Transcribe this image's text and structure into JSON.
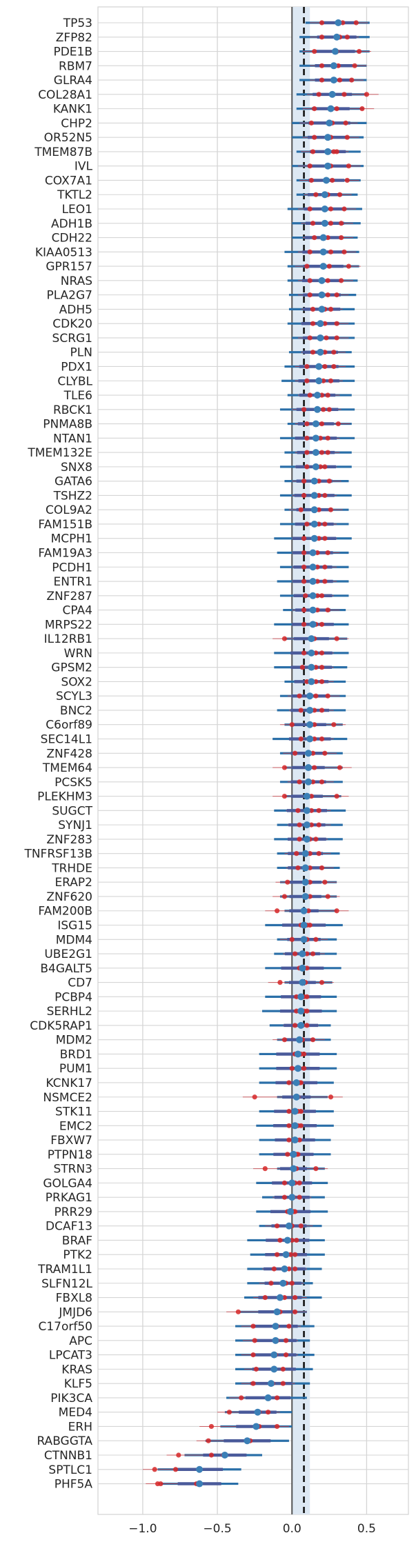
{
  "chart_data": {
    "type": "forest",
    "title": "",
    "xlabel": "",
    "ylabel": "",
    "xlim": [
      -1.3,
      0.78
    ],
    "xticks": [
      -1.0,
      -0.5,
      0.0,
      0.5
    ],
    "xtick_labels": [
      "−1.0",
      "−0.5",
      "0.0",
      "0.5"
    ],
    "zero_line": 0.0,
    "reference_line": 0.08,
    "reference_band": [
      0.0,
      0.12
    ],
    "grid": true,
    "colors": {
      "interval": "#2a6fa8",
      "estimate": "#3b7fb6",
      "replicate": "#d62728",
      "replicate_line": "#c8474f",
      "band": "#dde8f3",
      "grid": "#d5d5d5",
      "zero_line": "#555555",
      "reference_line": "#111111"
    },
    "genes": [
      {
        "name": "TP53",
        "est": 0.31,
        "lo": 0.09,
        "hi": 0.52,
        "reps": [
          0.2,
          0.43,
          0.34
        ]
      },
      {
        "name": "ZFP82",
        "est": 0.3,
        "lo": 0.05,
        "hi": 0.52,
        "reps": [
          0.2,
          0.37,
          0.32
        ]
      },
      {
        "name": "PDE1B",
        "est": 0.29,
        "lo": 0.05,
        "hi": 0.52,
        "reps": [
          0.15,
          0.45,
          0.3
        ]
      },
      {
        "name": "RBM7",
        "est": 0.28,
        "lo": 0.05,
        "hi": 0.5,
        "reps": [
          0.2,
          0.42,
          0.31
        ]
      },
      {
        "name": "GLRA4",
        "est": 0.28,
        "lo": 0.05,
        "hi": 0.5,
        "reps": [
          0.2,
          0.4,
          0.32
        ]
      },
      {
        "name": "COL28A1",
        "est": 0.27,
        "lo": 0.03,
        "hi": 0.5,
        "reps": [
          0.18,
          0.5,
          0.35
        ]
      },
      {
        "name": "KANK1",
        "est": 0.26,
        "lo": 0.03,
        "hi": 0.48,
        "reps": [
          0.15,
          0.47,
          0.3
        ]
      },
      {
        "name": "CHP2",
        "est": 0.25,
        "lo": 0.0,
        "hi": 0.5,
        "reps": [
          0.13,
          0.36,
          0.27
        ]
      },
      {
        "name": "OR52N5",
        "est": 0.24,
        "lo": 0.0,
        "hi": 0.48,
        "reps": [
          0.15,
          0.37,
          0.26
        ]
      },
      {
        "name": "TMEM87B",
        "est": 0.24,
        "lo": 0.03,
        "hi": 0.46,
        "reps": [
          0.14,
          0.3,
          0.28
        ]
      },
      {
        "name": "IVL",
        "est": 0.24,
        "lo": 0.0,
        "hi": 0.48,
        "reps": [
          0.12,
          0.38,
          0.26
        ]
      },
      {
        "name": "COX7A1",
        "est": 0.23,
        "lo": 0.03,
        "hi": 0.46,
        "reps": [
          0.13,
          0.37,
          0.27
        ]
      },
      {
        "name": "TKTL2",
        "est": 0.22,
        "lo": 0.03,
        "hi": 0.44,
        "reps": [
          0.16,
          0.32,
          0.24
        ]
      },
      {
        "name": "LEO1",
        "est": 0.22,
        "lo": -0.03,
        "hi": 0.47,
        "reps": [
          0.12,
          0.35,
          0.26
        ]
      },
      {
        "name": "ADH1B",
        "est": 0.22,
        "lo": 0.0,
        "hi": 0.46,
        "reps": [
          0.14,
          0.33,
          0.26
        ]
      },
      {
        "name": "CDH22",
        "est": 0.21,
        "lo": 0.0,
        "hi": 0.44,
        "reps": [
          0.15,
          0.33,
          0.24
        ]
      },
      {
        "name": "KIAA0513",
        "est": 0.21,
        "lo": -0.05,
        "hi": 0.45,
        "reps": [
          0.12,
          0.35,
          0.26
        ]
      },
      {
        "name": "GPR157",
        "est": 0.21,
        "lo": -0.03,
        "hi": 0.45,
        "reps": [
          0.1,
          0.38,
          0.25
        ]
      },
      {
        "name": "NRAS",
        "est": 0.2,
        "lo": -0.03,
        "hi": 0.44,
        "reps": [
          0.12,
          0.33,
          0.24
        ]
      },
      {
        "name": "PLA2G7",
        "est": 0.2,
        "lo": -0.02,
        "hi": 0.43,
        "reps": [
          0.12,
          0.3,
          0.24
        ]
      },
      {
        "name": "ADH5",
        "est": 0.2,
        "lo": -0.02,
        "hi": 0.42,
        "reps": [
          0.14,
          0.26,
          0.22
        ]
      },
      {
        "name": "CDK20",
        "est": 0.19,
        "lo": -0.03,
        "hi": 0.42,
        "reps": [
          0.14,
          0.3,
          0.22
        ]
      },
      {
        "name": "SCRG1",
        "est": 0.19,
        "lo": 0.0,
        "hi": 0.42,
        "reps": [
          0.12,
          0.3,
          0.23
        ]
      },
      {
        "name": "PLN",
        "est": 0.19,
        "lo": -0.02,
        "hi": 0.4,
        "reps": [
          0.14,
          0.28,
          0.22
        ]
      },
      {
        "name": "PDX1",
        "est": 0.18,
        "lo": -0.05,
        "hi": 0.42,
        "reps": [
          0.1,
          0.28,
          0.22
        ]
      },
      {
        "name": "CLYBL",
        "est": 0.18,
        "lo": -0.07,
        "hi": 0.42,
        "reps": [
          0.1,
          0.26,
          0.21
        ]
      },
      {
        "name": "TLE6",
        "est": 0.17,
        "lo": -0.03,
        "hi": 0.4,
        "reps": [
          0.12,
          0.24,
          0.2
        ]
      },
      {
        "name": "RBCK1",
        "est": 0.17,
        "lo": -0.08,
        "hi": 0.42,
        "reps": [
          0.08,
          0.25,
          0.21
        ]
      },
      {
        "name": "PNMA8B",
        "est": 0.16,
        "lo": -0.03,
        "hi": 0.4,
        "reps": [
          0.1,
          0.31,
          0.2
        ]
      },
      {
        "name": "NTAN1",
        "est": 0.16,
        "lo": -0.08,
        "hi": 0.42,
        "reps": [
          0.1,
          0.24,
          0.19
        ]
      },
      {
        "name": "TMEM132E",
        "est": 0.16,
        "lo": -0.05,
        "hi": 0.4,
        "reps": [
          0.1,
          0.24,
          0.2
        ]
      },
      {
        "name": "SNX8",
        "est": 0.16,
        "lo": -0.08,
        "hi": 0.4,
        "reps": [
          0.1,
          0.22,
          0.19
        ]
      },
      {
        "name": "GATA6",
        "est": 0.15,
        "lo": -0.05,
        "hi": 0.38,
        "reps": [
          0.08,
          0.25,
          0.18
        ]
      },
      {
        "name": "TSHZ2",
        "est": 0.15,
        "lo": -0.08,
        "hi": 0.4,
        "reps": [
          0.08,
          0.22,
          0.18
        ]
      },
      {
        "name": "COL9A2",
        "est": 0.15,
        "lo": -0.05,
        "hi": 0.38,
        "reps": [
          0.06,
          0.26,
          0.18
        ]
      },
      {
        "name": "FAM151B",
        "est": 0.15,
        "lo": -0.08,
        "hi": 0.38,
        "reps": [
          0.1,
          0.22,
          0.18
        ]
      },
      {
        "name": "MCPH1",
        "est": 0.15,
        "lo": -0.12,
        "hi": 0.4,
        "reps": [
          0.08,
          0.22,
          0.18
        ]
      },
      {
        "name": "FAM19A3",
        "est": 0.14,
        "lo": -0.1,
        "hi": 0.38,
        "reps": [
          0.08,
          0.24,
          0.17
        ]
      },
      {
        "name": "PCDH1",
        "est": 0.14,
        "lo": -0.08,
        "hi": 0.38,
        "reps": [
          0.08,
          0.22,
          0.17
        ]
      },
      {
        "name": "ENTR1",
        "est": 0.14,
        "lo": -0.1,
        "hi": 0.38,
        "reps": [
          0.08,
          0.22,
          0.17
        ]
      },
      {
        "name": "ZNF287",
        "est": 0.14,
        "lo": -0.08,
        "hi": 0.38,
        "reps": [
          0.09,
          0.2,
          0.17
        ]
      },
      {
        "name": "CPA4",
        "est": 0.14,
        "lo": -0.06,
        "hi": 0.36,
        "reps": [
          0.08,
          0.24,
          0.17
        ]
      },
      {
        "name": "MRPS22",
        "est": 0.14,
        "lo": -0.12,
        "hi": 0.38,
        "reps": [
          0.08,
          0.2,
          0.16
        ]
      },
      {
        "name": "IL12RB1",
        "est": 0.13,
        "lo": -0.05,
        "hi": 0.37,
        "reps": [
          -0.05,
          0.3,
          0.15
        ]
      },
      {
        "name": "WRN",
        "est": 0.13,
        "lo": -0.12,
        "hi": 0.38,
        "reps": [
          0.08,
          0.2,
          0.16
        ]
      },
      {
        "name": "GPSM2",
        "est": 0.13,
        "lo": -0.12,
        "hi": 0.37,
        "reps": [
          0.07,
          0.2,
          0.16
        ]
      },
      {
        "name": "SOX2",
        "est": 0.13,
        "lo": -0.05,
        "hi": 0.36,
        "reps": [
          0.1,
          0.2,
          0.16
        ]
      },
      {
        "name": "SCYL3",
        "est": 0.12,
        "lo": -0.08,
        "hi": 0.36,
        "reps": [
          0.05,
          0.24,
          0.16
        ]
      },
      {
        "name": "BNC2",
        "est": 0.12,
        "lo": -0.1,
        "hi": 0.36,
        "reps": [
          0.06,
          0.2,
          0.15
        ]
      },
      {
        "name": "C6orf89",
        "est": 0.12,
        "lo": -0.05,
        "hi": 0.34,
        "reps": [
          0.0,
          0.28,
          0.15
        ]
      },
      {
        "name": "SEC14L1",
        "est": 0.12,
        "lo": -0.13,
        "hi": 0.37,
        "reps": [
          0.06,
          0.2,
          0.15
        ]
      },
      {
        "name": "ZNF428",
        "est": 0.11,
        "lo": -0.08,
        "hi": 0.34,
        "reps": [
          0.02,
          0.22,
          0.14
        ]
      },
      {
        "name": "TMEM64",
        "est": 0.11,
        "lo": -0.05,
        "hi": 0.34,
        "reps": [
          -0.05,
          0.32,
          0.15
        ]
      },
      {
        "name": "PCSK5",
        "est": 0.11,
        "lo": -0.08,
        "hi": 0.34,
        "reps": [
          0.05,
          0.2,
          0.14
        ]
      },
      {
        "name": "PLEKHM3",
        "est": 0.1,
        "lo": -0.05,
        "hi": 0.33,
        "reps": [
          -0.05,
          0.3,
          0.13
        ]
      },
      {
        "name": "SUGCT",
        "est": 0.1,
        "lo": -0.12,
        "hi": 0.36,
        "reps": [
          0.04,
          0.18,
          0.13
        ]
      },
      {
        "name": "SYNJ1",
        "est": 0.1,
        "lo": -0.1,
        "hi": 0.34,
        "reps": [
          0.05,
          0.18,
          0.13
        ]
      },
      {
        "name": "ZNF283",
        "est": 0.1,
        "lo": -0.12,
        "hi": 0.34,
        "reps": [
          0.05,
          0.16,
          0.12
        ]
      },
      {
        "name": "TNFRSF13B",
        "est": 0.09,
        "lo": -0.1,
        "hi": 0.32,
        "reps": [
          0.03,
          0.18,
          0.12
        ]
      },
      {
        "name": "TRHDE",
        "est": 0.09,
        "lo": -0.1,
        "hi": 0.32,
        "reps": [
          0.04,
          0.2,
          0.12
        ]
      },
      {
        "name": "ERAP2",
        "est": 0.09,
        "lo": -0.08,
        "hi": 0.3,
        "reps": [
          -0.03,
          0.22,
          0.12
        ]
      },
      {
        "name": "ZNF620",
        "est": 0.09,
        "lo": -0.08,
        "hi": 0.3,
        "reps": [
          -0.05,
          0.24,
          0.12
        ]
      },
      {
        "name": "FAM200B",
        "est": 0.08,
        "lo": -0.05,
        "hi": 0.3,
        "reps": [
          -0.1,
          0.3,
          0.11
        ]
      },
      {
        "name": "ISG15",
        "est": 0.08,
        "lo": -0.18,
        "hi": 0.34,
        "reps": [
          0.06,
          0.12,
          0.1
        ]
      },
      {
        "name": "MDM4",
        "est": 0.08,
        "lo": -0.1,
        "hi": 0.3,
        "reps": [
          0.0,
          0.16,
          0.1
        ]
      },
      {
        "name": "UBE2G1",
        "est": 0.07,
        "lo": -0.12,
        "hi": 0.3,
        "reps": [
          0.02,
          0.14,
          0.1
        ]
      },
      {
        "name": "B4GALT5",
        "est": 0.07,
        "lo": -0.18,
        "hi": 0.33,
        "reps": [
          0.05,
          0.1,
          0.08
        ]
      },
      {
        "name": "CD7",
        "est": 0.07,
        "lo": -0.05,
        "hi": 0.27,
        "reps": [
          -0.08,
          0.2,
          0.09
        ]
      },
      {
        "name": "PCBP4",
        "est": 0.06,
        "lo": -0.18,
        "hi": 0.3,
        "reps": [
          0.03,
          0.1,
          0.08
        ]
      },
      {
        "name": "SERHL2",
        "est": 0.06,
        "lo": -0.2,
        "hi": 0.3,
        "reps": [
          0.03,
          0.1,
          0.08
        ]
      },
      {
        "name": "CDK5RAP1",
        "est": 0.06,
        "lo": -0.15,
        "hi": 0.26,
        "reps": [
          0.02,
          0.1,
          0.07
        ]
      },
      {
        "name": "MDM2",
        "est": 0.05,
        "lo": -0.1,
        "hi": 0.26,
        "reps": [
          -0.05,
          0.14,
          0.07
        ]
      },
      {
        "name": "BRD1",
        "est": 0.04,
        "lo": -0.22,
        "hi": 0.3,
        "reps": [
          0.02,
          0.08,
          0.06
        ]
      },
      {
        "name": "PUM1",
        "est": 0.04,
        "lo": -0.22,
        "hi": 0.3,
        "reps": [
          0.0,
          0.08,
          0.05
        ]
      },
      {
        "name": "KCNK17",
        "est": 0.03,
        "lo": -0.22,
        "hi": 0.28,
        "reps": [
          -0.02,
          0.06,
          0.05
        ]
      },
      {
        "name": "NSMCE2",
        "est": 0.03,
        "lo": -0.1,
        "hi": 0.24,
        "reps": [
          -0.25,
          0.26,
          0.04
        ]
      },
      {
        "name": "STK11",
        "est": 0.02,
        "lo": -0.22,
        "hi": 0.28,
        "reps": [
          -0.02,
          0.06,
          0.04
        ]
      },
      {
        "name": "EMC2",
        "est": 0.02,
        "lo": -0.24,
        "hi": 0.28,
        "reps": [
          -0.02,
          0.06,
          0.04
        ]
      },
      {
        "name": "FBXW7",
        "est": 0.02,
        "lo": -0.22,
        "hi": 0.26,
        "reps": [
          -0.02,
          0.05,
          0.03
        ]
      },
      {
        "name": "PTPN18",
        "est": 0.01,
        "lo": -0.22,
        "hi": 0.26,
        "reps": [
          -0.03,
          0.04,
          0.03
        ]
      },
      {
        "name": "STRN3",
        "est": 0.01,
        "lo": -0.1,
        "hi": 0.22,
        "reps": [
          -0.18,
          0.16,
          0.03
        ]
      },
      {
        "name": "GOLGA4",
        "est": 0.0,
        "lo": -0.24,
        "hi": 0.24,
        "reps": [
          -0.05,
          0.05,
          0.02
        ]
      },
      {
        "name": "PRKAG1",
        "est": 0.0,
        "lo": -0.2,
        "hi": 0.22,
        "reps": [
          -0.05,
          0.05,
          0.01
        ]
      },
      {
        "name": "PRR29",
        "est": -0.01,
        "lo": -0.24,
        "hi": 0.24,
        "reps": [
          -0.03,
          0.02,
          0.01
        ]
      },
      {
        "name": "DCAF13",
        "est": -0.02,
        "lo": -0.22,
        "hi": 0.2,
        "reps": [
          -0.1,
          0.06,
          0.0
        ]
      },
      {
        "name": "BRAF",
        "est": -0.03,
        "lo": -0.3,
        "hi": 0.22,
        "reps": [
          -0.08,
          0.03,
          0.0
        ]
      },
      {
        "name": "PTK2",
        "est": -0.04,
        "lo": -0.28,
        "hi": 0.22,
        "reps": [
          -0.1,
          0.02,
          -0.01
        ]
      },
      {
        "name": "TRAM1L1",
        "est": -0.05,
        "lo": -0.3,
        "hi": 0.2,
        "reps": [
          -0.12,
          0.02,
          -0.02
        ]
      },
      {
        "name": "SLFN12L",
        "est": -0.06,
        "lo": -0.3,
        "hi": 0.14,
        "reps": [
          -0.14,
          0.0,
          -0.04
        ]
      },
      {
        "name": "FBXL8",
        "est": -0.08,
        "lo": -0.32,
        "hi": 0.2,
        "reps": [
          -0.18,
          0.02,
          -0.05
        ]
      },
      {
        "name": "JMJD6",
        "est": -0.1,
        "lo": -0.35,
        "hi": 0.1,
        "reps": [
          -0.36,
          0.02,
          -0.08
        ]
      },
      {
        "name": "C17orf50",
        "est": -0.11,
        "lo": -0.38,
        "hi": 0.15,
        "reps": [
          -0.26,
          -0.02,
          -0.1
        ]
      },
      {
        "name": "APC",
        "est": -0.11,
        "lo": -0.38,
        "hi": 0.12,
        "reps": [
          -0.25,
          -0.04,
          -0.1
        ]
      },
      {
        "name": "LPCAT3",
        "est": -0.12,
        "lo": -0.38,
        "hi": 0.15,
        "reps": [
          -0.26,
          -0.04,
          -0.11
        ]
      },
      {
        "name": "KRAS",
        "est": -0.12,
        "lo": -0.38,
        "hi": 0.14,
        "reps": [
          -0.24,
          -0.06,
          -0.12
        ]
      },
      {
        "name": "KLF5",
        "est": -0.14,
        "lo": -0.38,
        "hi": 0.12,
        "reps": [
          -0.26,
          -0.06,
          -0.13
        ]
      },
      {
        "name": "PIK3CA",
        "est": -0.16,
        "lo": -0.44,
        "hi": 0.1,
        "reps": [
          -0.34,
          -0.1,
          -0.16
        ]
      },
      {
        "name": "MED4",
        "est": -0.23,
        "lo": -0.45,
        "hi": 0.0,
        "reps": [
          -0.42,
          -0.16,
          -0.22
        ]
      },
      {
        "name": "ERH",
        "est": -0.24,
        "lo": -0.48,
        "hi": 0.0,
        "reps": [
          -0.54,
          -0.1,
          -0.22
        ]
      },
      {
        "name": "RABGGTA",
        "est": -0.3,
        "lo": -0.58,
        "hi": -0.02,
        "reps": [
          -0.56,
          -0.28,
          -0.3
        ]
      },
      {
        "name": "CTNNB1",
        "est": -0.45,
        "lo": -0.72,
        "hi": -0.2,
        "reps": [
          -0.76,
          -0.54,
          -0.46
        ]
      },
      {
        "name": "SPTLC1",
        "est": -0.62,
        "lo": -0.9,
        "hi": -0.34,
        "reps": [
          -0.92,
          -0.78,
          -0.62
        ]
      },
      {
        "name": "PHF5A",
        "est": -0.62,
        "lo": -0.88,
        "hi": -0.36,
        "reps": [
          -0.9,
          -0.88,
          -0.64
        ]
      }
    ]
  }
}
